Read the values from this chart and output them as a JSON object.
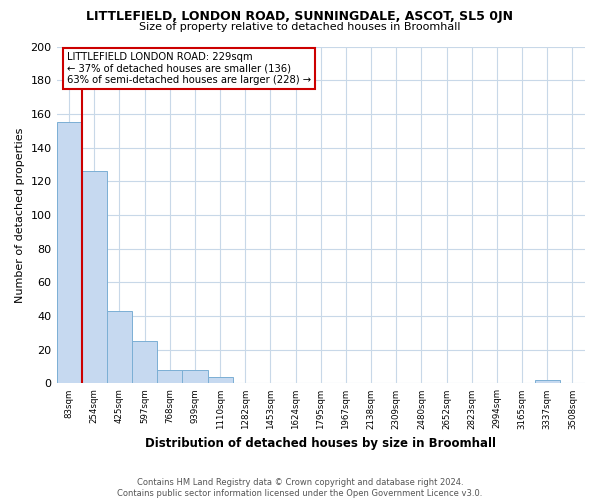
{
  "title": "LITTLEFIELD, LONDON ROAD, SUNNINGDALE, ASCOT, SL5 0JN",
  "subtitle": "Size of property relative to detached houses in Broomhall",
  "xlabel": "Distribution of detached houses by size in Broomhall",
  "ylabel": "Number of detached properties",
  "bin_labels": [
    "83sqm",
    "254sqm",
    "425sqm",
    "597sqm",
    "768sqm",
    "939sqm",
    "1110sqm",
    "1282sqm",
    "1453sqm",
    "1624sqm",
    "1795sqm",
    "1967sqm",
    "2138sqm",
    "2309sqm",
    "2480sqm",
    "2652sqm",
    "2823sqm",
    "2994sqm",
    "3165sqm",
    "3337sqm",
    "3508sqm"
  ],
  "bar_heights": [
    155,
    126,
    43,
    25,
    8,
    8,
    4,
    0,
    0,
    0,
    0,
    0,
    0,
    0,
    0,
    0,
    0,
    0,
    0,
    2,
    0
  ],
  "bar_color": "#c6d9f0",
  "bar_edge_color": "#7bafd4",
  "vline_color": "#cc0000",
  "annotation_title": "LITTLEFIELD LONDON ROAD: 229sqm",
  "annotation_line1": "← 37% of detached houses are smaller (136)",
  "annotation_line2": "63% of semi-detached houses are larger (228) →",
  "ylim": [
    0,
    200
  ],
  "yticks": [
    0,
    20,
    40,
    60,
    80,
    100,
    120,
    140,
    160,
    180,
    200
  ],
  "footer_line1": "Contains HM Land Registry data © Crown copyright and database right 2024.",
  "footer_line2": "Contains public sector information licensed under the Open Government Licence v3.0.",
  "background_color": "#ffffff",
  "grid_color": "#c8d8e8"
}
